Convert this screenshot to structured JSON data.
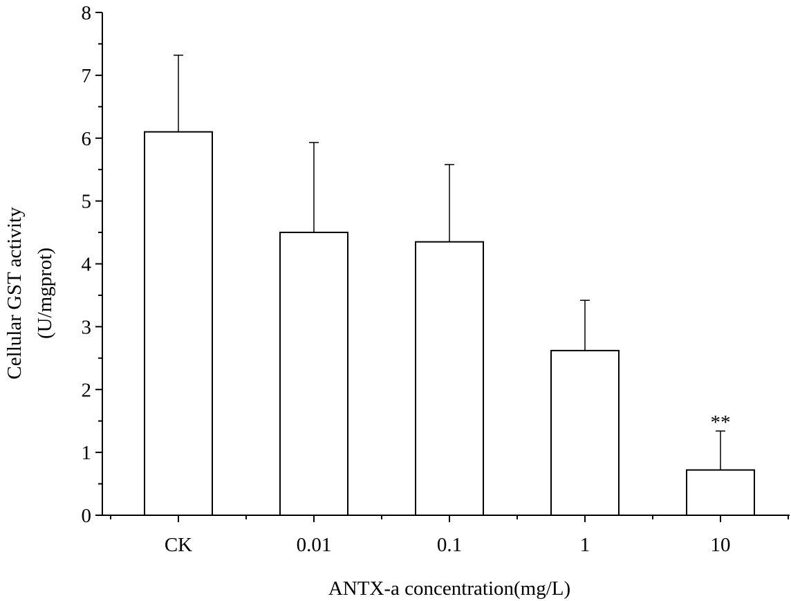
{
  "chart_data": {
    "type": "bar",
    "categories": [
      "CK",
      "0.01",
      "0.1",
      "1",
      "10"
    ],
    "series": [
      {
        "values": [
          6.1,
          4.5,
          4.35,
          2.62,
          0.72
        ],
        "error": [
          1.22,
          1.43,
          1.23,
          0.8,
          0.62
        ]
      }
    ],
    "annotations": [
      "",
      "",
      "",
      "",
      "**"
    ],
    "xlabel": "ANTX-a concentration(mg/L)",
    "ylabel": "Cellular GST activity",
    "ylabel_unit": "(U/mgprot)",
    "ylim": [
      0,
      8
    ],
    "yticks": [
      "0",
      "1",
      "2",
      "3",
      "4",
      "5",
      "6",
      "7",
      "8"
    ],
    "grid": false,
    "legend": "none",
    "colors": {
      "bar_fill": "#ffffff",
      "stroke": "#000000"
    }
  }
}
